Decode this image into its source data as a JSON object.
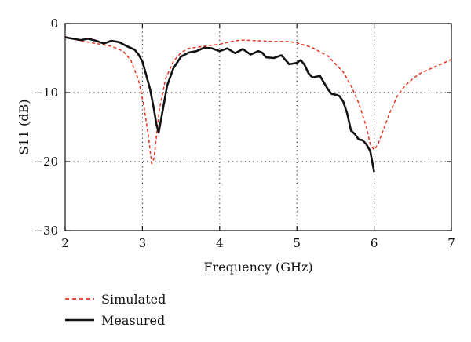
{
  "chart_data": {
    "type": "line",
    "xlabel": "Frequency (GHz)",
    "ylabel": "S11 (dB)",
    "xlim": [
      2,
      7
    ],
    "ylim": [
      -30,
      0
    ],
    "xticks": [
      2,
      3,
      4,
      5,
      6,
      7
    ],
    "yticks": [
      0,
      -10,
      -20,
      -30
    ],
    "grid": "dotted, inner lines only",
    "legend_position": "bottom-left, below plot",
    "series": [
      {
        "name": "Simulated",
        "style": "dashed",
        "color": "#e8321e",
        "x": [
          2.0,
          2.2,
          2.4,
          2.6,
          2.75,
          2.85,
          2.95,
          3.02,
          3.08,
          3.12,
          3.15,
          3.18,
          3.22,
          3.3,
          3.4,
          3.5,
          3.6,
          3.8,
          4.0,
          4.2,
          4.3,
          4.5,
          4.7,
          4.9,
          5.0,
          5.2,
          5.4,
          5.6,
          5.7,
          5.8,
          5.9,
          5.95,
          6.0,
          6.05,
          6.1,
          6.2,
          6.3,
          6.4,
          6.5,
          6.6,
          6.8,
          7.0
        ],
        "y": [
          -1.9,
          -2.5,
          -2.9,
          -3.3,
          -4.0,
          -5.3,
          -8.2,
          -12.0,
          -16.5,
          -20.3,
          -19.5,
          -16.5,
          -12.5,
          -8.0,
          -5.5,
          -4.2,
          -3.6,
          -3.3,
          -3.0,
          -2.5,
          -2.4,
          -2.5,
          -2.6,
          -2.6,
          -2.8,
          -3.5,
          -4.7,
          -7.0,
          -9.0,
          -11.5,
          -15.0,
          -17.5,
          -18.3,
          -17.5,
          -16.0,
          -13.0,
          -10.5,
          -9.0,
          -8.0,
          -7.2,
          -6.2,
          -5.2
        ]
      },
      {
        "name": "Measured",
        "style": "solid",
        "color": "#111111",
        "x": [
          2.0,
          2.1,
          2.2,
          2.3,
          2.4,
          2.5,
          2.6,
          2.7,
          2.8,
          2.9,
          2.95,
          3.0,
          3.05,
          3.1,
          3.15,
          3.18,
          3.21,
          3.24,
          3.28,
          3.32,
          3.4,
          3.5,
          3.6,
          3.7,
          3.8,
          3.9,
          4.0,
          4.1,
          4.2,
          4.3,
          4.4,
          4.5,
          4.55,
          4.6,
          4.7,
          4.8,
          4.9,
          5.0,
          5.05,
          5.1,
          5.15,
          5.2,
          5.3,
          5.4,
          5.45,
          5.5,
          5.55,
          5.6,
          5.65,
          5.7,
          5.75,
          5.8,
          5.85,
          5.9,
          5.95,
          6.0
        ],
        "y": [
          -2.0,
          -2.2,
          -2.4,
          -2.2,
          -2.5,
          -2.9,
          -2.5,
          -2.7,
          -3.3,
          -3.8,
          -4.5,
          -5.5,
          -7.5,
          -9.5,
          -12.5,
          -14.5,
          -15.8,
          -14.0,
          -11.5,
          -9.0,
          -6.5,
          -4.8,
          -4.2,
          -4.0,
          -3.5,
          -3.6,
          -4.0,
          -3.6,
          -4.3,
          -3.7,
          -4.5,
          -4.0,
          -4.2,
          -4.9,
          -5.0,
          -4.6,
          -5.9,
          -5.7,
          -5.3,
          -6.0,
          -7.2,
          -7.8,
          -7.6,
          -9.5,
          -10.2,
          -10.3,
          -10.5,
          -11.3,
          -13.0,
          -15.5,
          -16.0,
          -16.8,
          -16.9,
          -17.5,
          -18.5,
          -21.5
        ]
      }
    ]
  }
}
